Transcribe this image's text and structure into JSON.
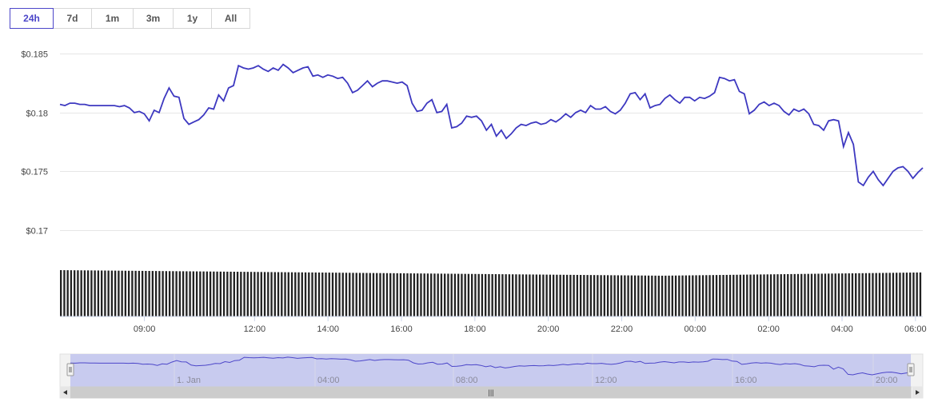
{
  "range_selector": {
    "buttons": [
      {
        "label": "24h",
        "active": true
      },
      {
        "label": "7d",
        "active": false
      },
      {
        "label": "1m",
        "active": false
      },
      {
        "label": "3m",
        "active": false
      },
      {
        "label": "1y",
        "active": false
      },
      {
        "label": "All",
        "active": false
      }
    ]
  },
  "colors": {
    "line": "#3d38c0",
    "volume": "#222222",
    "grid": "#e6e6e6",
    "navigator_fill": "#c5c8ee",
    "navigator_line": "#4c46c9"
  },
  "chart_data": {
    "type": "line",
    "title": "",
    "xlabel": "",
    "ylabel": "",
    "y_tick_labels": [
      "$0.185",
      "$0.18",
      "$0.175",
      "$0.17"
    ],
    "y_ticks": [
      0.185,
      0.18,
      0.175,
      0.17
    ],
    "ylim": [
      0.1685,
      0.1855
    ],
    "x_tick_labels": [
      "09:00",
      "12:00",
      "14:00",
      "16:00",
      "18:00",
      "20:00",
      "22:00",
      "00:00",
      "02:00",
      "04:00",
      "06:00"
    ],
    "x_tick_hours": [
      9,
      12,
      14,
      16,
      18,
      20,
      22,
      24,
      26,
      28,
      30
    ],
    "xlim_hours": [
      6.7,
      30.2
    ],
    "grid": true,
    "legend": "none",
    "series": [
      {
        "values": [
          [
            6.7,
            0.1807
          ],
          [
            6.8,
            0.1806
          ],
          [
            6.9,
            0.1808
          ],
          [
            7.0,
            0.1808
          ],
          [
            7.1,
            0.1807
          ],
          [
            7.2,
            0.1807
          ],
          [
            7.3,
            0.1806
          ],
          [
            7.45,
            0.1806
          ],
          [
            7.6,
            0.1806
          ],
          [
            7.7,
            0.1806
          ],
          [
            7.8,
            0.1806
          ],
          [
            7.9,
            0.1805
          ],
          [
            8.0,
            0.1806
          ],
          [
            8.1,
            0.1804
          ],
          [
            8.2,
            0.18
          ],
          [
            8.3,
            0.1801
          ],
          [
            8.4,
            0.1799
          ],
          [
            8.5,
            0.1793
          ],
          [
            8.6,
            0.1802
          ],
          [
            8.7,
            0.18
          ],
          [
            8.8,
            0.1812
          ],
          [
            8.9,
            0.1821
          ],
          [
            9.0,
            0.1814
          ],
          [
            9.1,
            0.1813
          ],
          [
            9.2,
            0.1795
          ],
          [
            9.3,
            0.179
          ],
          [
            9.4,
            0.1792
          ],
          [
            9.5,
            0.1794
          ],
          [
            9.6,
            0.1798
          ],
          [
            9.7,
            0.1804
          ],
          [
            9.8,
            0.1803
          ],
          [
            9.9,
            0.1815
          ],
          [
            10.0,
            0.181
          ],
          [
            10.1,
            0.1821
          ],
          [
            10.2,
            0.1823
          ],
          [
            10.3,
            0.184
          ],
          [
            10.4,
            0.1838
          ],
          [
            10.5,
            0.1837
          ],
          [
            10.6,
            0.1838
          ],
          [
            10.7,
            0.184
          ],
          [
            10.8,
            0.1837
          ],
          [
            10.9,
            0.1835
          ],
          [
            11.0,
            0.1838
          ],
          [
            11.1,
            0.1836
          ],
          [
            11.2,
            0.1841
          ],
          [
            11.3,
            0.1838
          ],
          [
            11.4,
            0.1834
          ],
          [
            11.5,
            0.1836
          ],
          [
            11.6,
            0.1838
          ],
          [
            11.7,
            0.1839
          ],
          [
            11.8,
            0.1831
          ],
          [
            11.9,
            0.1832
          ],
          [
            12.0,
            0.183
          ],
          [
            12.1,
            0.1832
          ],
          [
            12.2,
            0.1831
          ],
          [
            12.3,
            0.1829
          ],
          [
            12.4,
            0.183
          ],
          [
            12.5,
            0.1825
          ],
          [
            12.6,
            0.1817
          ],
          [
            12.7,
            0.1819
          ],
          [
            12.8,
            0.1823
          ],
          [
            12.9,
            0.1827
          ],
          [
            13.0,
            0.1822
          ],
          [
            13.1,
            0.1825
          ],
          [
            13.2,
            0.1827
          ],
          [
            13.3,
            0.1827
          ],
          [
            13.4,
            0.1826
          ],
          [
            13.5,
            0.1825
          ],
          [
            13.6,
            0.1826
          ],
          [
            13.7,
            0.1823
          ],
          [
            13.8,
            0.1808
          ],
          [
            13.9,
            0.1801
          ],
          [
            14.0,
            0.1802
          ],
          [
            14.1,
            0.1808
          ],
          [
            14.2,
            0.1811
          ],
          [
            14.3,
            0.18
          ],
          [
            14.4,
            0.1801
          ],
          [
            14.5,
            0.1807
          ],
          [
            14.6,
            0.1787
          ],
          [
            14.7,
            0.1788
          ],
          [
            14.8,
            0.1791
          ],
          [
            14.9,
            0.1797
          ],
          [
            15.0,
            0.1796
          ],
          [
            15.1,
            0.1797
          ],
          [
            15.2,
            0.1793
          ],
          [
            15.3,
            0.1785
          ],
          [
            15.4,
            0.179
          ],
          [
            15.5,
            0.178
          ],
          [
            15.6,
            0.1785
          ],
          [
            15.7,
            0.1778
          ],
          [
            15.8,
            0.1782
          ],
          [
            15.9,
            0.1787
          ],
          [
            16.0,
            0.179
          ],
          [
            16.1,
            0.1789
          ],
          [
            16.2,
            0.1791
          ],
          [
            16.3,
            0.1792
          ],
          [
            16.4,
            0.179
          ],
          [
            16.5,
            0.1791
          ],
          [
            16.6,
            0.1794
          ],
          [
            16.7,
            0.1792
          ],
          [
            16.8,
            0.1795
          ],
          [
            16.9,
            0.1799
          ],
          [
            17.0,
            0.1796
          ],
          [
            17.1,
            0.18
          ],
          [
            17.2,
            0.1802
          ],
          [
            17.3,
            0.18
          ],
          [
            17.4,
            0.1806
          ],
          [
            17.5,
            0.1803
          ],
          [
            17.6,
            0.1803
          ],
          [
            17.7,
            0.1805
          ],
          [
            17.8,
            0.1801
          ],
          [
            17.9,
            0.1799
          ],
          [
            18.0,
            0.1802
          ],
          [
            18.1,
            0.1808
          ],
          [
            18.2,
            0.1816
          ],
          [
            18.3,
            0.1817
          ],
          [
            18.4,
            0.1811
          ],
          [
            18.5,
            0.1816
          ],
          [
            18.6,
            0.1804
          ],
          [
            18.7,
            0.1806
          ],
          [
            18.8,
            0.1807
          ],
          [
            18.9,
            0.1812
          ],
          [
            19.0,
            0.1815
          ],
          [
            19.1,
            0.1811
          ],
          [
            19.2,
            0.1808
          ],
          [
            19.3,
            0.1813
          ],
          [
            19.4,
            0.1813
          ],
          [
            19.5,
            0.181
          ],
          [
            19.6,
            0.1813
          ],
          [
            19.7,
            0.1812
          ],
          [
            19.8,
            0.1814
          ],
          [
            19.9,
            0.1817
          ],
          [
            20.0,
            0.183
          ],
          [
            20.1,
            0.1829
          ],
          [
            20.2,
            0.1827
          ],
          [
            20.3,
            0.1828
          ],
          [
            20.4,
            0.1818
          ],
          [
            20.5,
            0.1816
          ],
          [
            20.6,
            0.1799
          ],
          [
            20.7,
            0.1802
          ],
          [
            20.8,
            0.1807
          ],
          [
            20.9,
            0.1809
          ],
          [
            21.0,
            0.1806
          ],
          [
            21.1,
            0.1808
          ],
          [
            21.2,
            0.1806
          ],
          [
            21.3,
            0.1801
          ],
          [
            21.4,
            0.1798
          ],
          [
            21.5,
            0.1803
          ],
          [
            21.6,
            0.1801
          ],
          [
            21.7,
            0.1803
          ],
          [
            21.8,
            0.1799
          ],
          [
            21.9,
            0.179
          ],
          [
            22.0,
            0.1789
          ],
          [
            22.1,
            0.1785
          ],
          [
            22.2,
            0.1793
          ],
          [
            22.3,
            0.1794
          ],
          [
            22.4,
            0.1793
          ],
          [
            22.5,
            0.1771
          ],
          [
            22.6,
            0.1783
          ],
          [
            22.7,
            0.1773
          ],
          [
            22.8,
            0.1741
          ],
          [
            22.9,
            0.1738
          ],
          [
            23.0,
            0.1745
          ],
          [
            23.1,
            0.175
          ],
          [
            23.2,
            0.1743
          ],
          [
            23.3,
            0.1738
          ],
          [
            23.4,
            0.1744
          ],
          [
            23.5,
            0.175
          ],
          [
            23.6,
            0.1753
          ],
          [
            23.7,
            0.1754
          ],
          [
            23.8,
            0.175
          ],
          [
            23.9,
            0.1744
          ],
          [
            24.0,
            0.1749
          ],
          [
            24.1,
            0.1753
          ]
        ]
      }
    ],
    "volume": {
      "bar_count": 254,
      "relative_start": 1.0,
      "relative_mid": 0.88,
      "relative_end": 0.95
    }
  },
  "navigator": {
    "labels": [
      "1. Jan",
      "04:00",
      "08:00",
      "12:00",
      "16:00",
      "20:00"
    ],
    "scrollbar_grip": "|||"
  }
}
